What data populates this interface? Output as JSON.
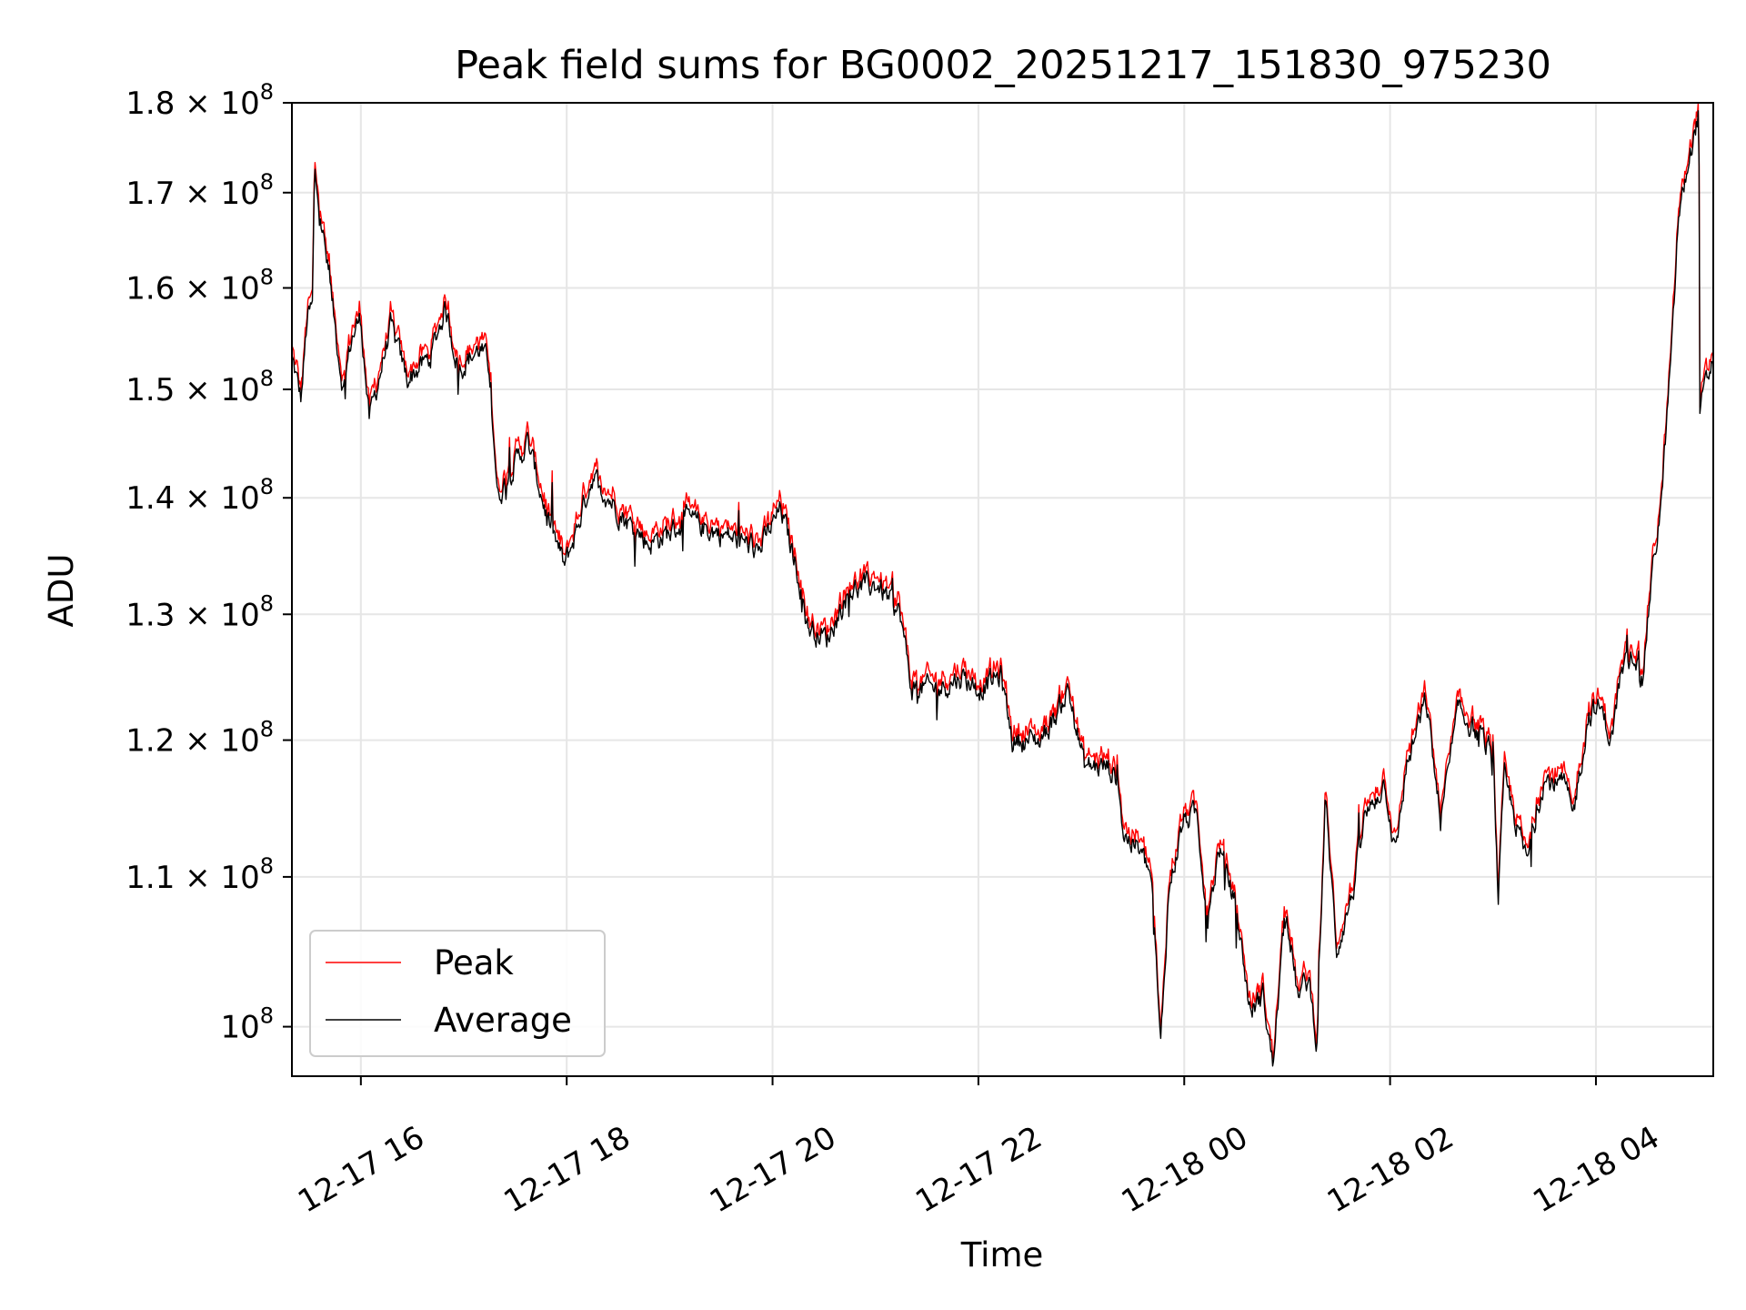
{
  "chart_data": {
    "type": "line",
    "title": "Peak field sums for BG0002_20251217_151830_975230",
    "xlabel": "Time",
    "ylabel": "ADU",
    "yscale": "log",
    "ylim": [
      96900000.0,
      180000000.0
    ],
    "x_units": "hours since 12-17 00:00",
    "xlim": [
      15.33,
      29.14
    ],
    "grid": true,
    "legend_position": "lower-left",
    "x_ticks": [
      {
        "value": 16,
        "label": "12-17 16"
      },
      {
        "value": 18,
        "label": "12-17 18"
      },
      {
        "value": 20,
        "label": "12-17 20"
      },
      {
        "value": 22,
        "label": "12-17 22"
      },
      {
        "value": 24,
        "label": "12-18 00"
      },
      {
        "value": 26,
        "label": "12-18 02"
      },
      {
        "value": 28,
        "label": "12-18 04"
      }
    ],
    "y_ticks": [
      {
        "value": 100000000.0,
        "mantissa": "",
        "exp": "8"
      },
      {
        "value": 110000000.0,
        "mantissa": "1.1 × ",
        "exp": "8"
      },
      {
        "value": 120000000.0,
        "mantissa": "1.2 × ",
        "exp": "8"
      },
      {
        "value": 130000000.0,
        "mantissa": "1.3 × ",
        "exp": "8"
      },
      {
        "value": 140000000.0,
        "mantissa": "1.4 × ",
        "exp": "8"
      },
      {
        "value": 150000000.0,
        "mantissa": "1.5 × ",
        "exp": "8"
      },
      {
        "value": 160000000.0,
        "mantissa": "1.6 × ",
        "exp": "8"
      },
      {
        "value": 170000000.0,
        "mantissa": "1.7 × ",
        "exp": "8"
      },
      {
        "value": 180000000.0,
        "mantissa": "1.8 × ",
        "exp": "8"
      }
    ],
    "series": [
      {
        "name": "Peak",
        "color": "#ff0000",
        "offset_ratio": 1.004
      },
      {
        "name": "Average",
        "color": "#000000",
        "offset_ratio": 1.0
      }
    ],
    "average_keypoints_x_hours_y_1e8": [
      [
        15.33,
        1.53
      ],
      [
        15.42,
        1.49
      ],
      [
        15.48,
        1.57
      ],
      [
        15.53,
        1.58
      ],
      [
        15.55,
        1.72
      ],
      [
        15.64,
        1.65
      ],
      [
        15.75,
        1.56
      ],
      [
        15.83,
        1.5
      ],
      [
        15.91,
        1.55
      ],
      [
        16.0,
        1.57
      ],
      [
        16.08,
        1.47
      ],
      [
        16.29,
        1.56
      ],
      [
        16.45,
        1.51
      ],
      [
        16.67,
        1.53
      ],
      [
        16.82,
        1.58
      ],
      [
        16.95,
        1.52
      ],
      [
        17.16,
        1.54
      ],
      [
        17.25,
        1.52
      ],
      [
        17.33,
        1.4
      ],
      [
        17.43,
        1.42
      ],
      [
        17.62,
        1.45
      ],
      [
        17.82,
        1.38
      ],
      [
        17.98,
        1.34
      ],
      [
        18.09,
        1.37
      ],
      [
        18.25,
        1.42
      ],
      [
        18.41,
        1.4
      ],
      [
        18.58,
        1.38
      ],
      [
        18.8,
        1.36
      ],
      [
        19.01,
        1.37
      ],
      [
        19.17,
        1.38
      ],
      [
        19.45,
        1.37
      ],
      [
        19.88,
        1.355
      ],
      [
        20.08,
        1.39
      ],
      [
        20.26,
        1.33
      ],
      [
        20.34,
        1.29
      ],
      [
        20.53,
        1.28
      ],
      [
        20.75,
        1.32
      ],
      [
        21.02,
        1.325
      ],
      [
        21.24,
        1.3
      ],
      [
        21.35,
        1.24
      ],
      [
        21.62,
        1.24
      ],
      [
        21.84,
        1.25
      ],
      [
        22.0,
        1.24
      ],
      [
        22.22,
        1.25
      ],
      [
        22.33,
        1.2
      ],
      [
        22.6,
        1.2
      ],
      [
        22.76,
        1.22
      ],
      [
        22.87,
        1.24
      ],
      [
        23.03,
        1.18
      ],
      [
        23.25,
        1.18
      ],
      [
        23.36,
        1.17
      ],
      [
        23.41,
        1.13
      ],
      [
        23.55,
        1.12
      ],
      [
        23.68,
        1.1
      ],
      [
        23.77,
        0.985
      ],
      [
        23.85,
        1.09
      ],
      [
        23.99,
        1.14
      ],
      [
        24.12,
        1.145
      ],
      [
        24.23,
        1.07
      ],
      [
        24.34,
        1.12
      ],
      [
        24.5,
        1.08
      ],
      [
        24.64,
        1.01
      ],
      [
        24.77,
        1.02
      ],
      [
        24.86,
        0.975
      ],
      [
        24.99,
        1.08
      ],
      [
        25.1,
        1.02
      ],
      [
        25.21,
        1.03
      ],
      [
        25.29,
        0.99
      ],
      [
        25.37,
        1.155
      ],
      [
        25.48,
        1.05
      ],
      [
        25.64,
        1.09
      ],
      [
        25.75,
        1.14
      ],
      [
        25.95,
        1.17
      ],
      [
        26.05,
        1.115
      ],
      [
        26.16,
        1.18
      ],
      [
        26.35,
        1.23
      ],
      [
        26.49,
        1.14
      ],
      [
        26.67,
        1.225
      ],
      [
        26.84,
        1.205
      ],
      [
        27.0,
        1.19
      ],
      [
        27.05,
        1.085
      ],
      [
        27.11,
        1.17
      ],
      [
        27.33,
        1.11
      ],
      [
        27.49,
        1.17
      ],
      [
        27.71,
        1.165
      ],
      [
        27.77,
        1.14
      ],
      [
        27.93,
        1.22
      ],
      [
        28.04,
        1.225
      ],
      [
        28.15,
        1.2
      ],
      [
        28.24,
        1.25
      ],
      [
        28.37,
        1.27
      ],
      [
        28.45,
        1.245
      ],
      [
        28.53,
        1.32
      ],
      [
        28.64,
        1.4
      ],
      [
        28.75,
        1.56
      ],
      [
        28.8,
        1.67
      ],
      [
        28.91,
        1.74
      ],
      [
        29.0,
        1.79
      ],
      [
        29.01,
        1.48
      ],
      [
        29.14,
        1.53
      ]
    ]
  }
}
